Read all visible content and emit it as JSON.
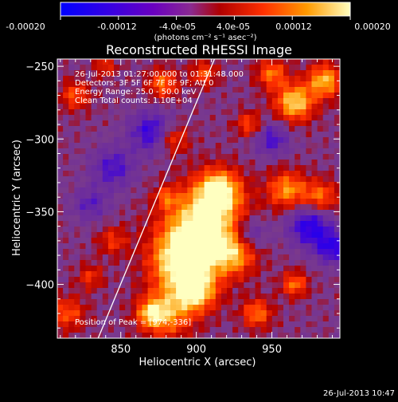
{
  "colorbar": {
    "ticks": [
      "-0.00020",
      "-0.00012",
      "-4.0e-05",
      "4.0e-05",
      "0.00012",
      "0.00020"
    ],
    "units": "(photons cm⁻² s⁻¹ asec⁻²)"
  },
  "header": {
    "title": "Reconstructed RHESSI Image"
  },
  "info": {
    "line1": "26-Jul-2013 01:27:00.000 to 01:31:48.000",
    "line2": "Detectors: 3F 5F 6F 7F 8F 9F; Att 0",
    "line3": "Energy Range: 25.0 - 50.0 keV",
    "line4": "Clean    Total counts: 1.10E+04",
    "peak": "Position of Peak = [974,-336]"
  },
  "footer": {
    "timestamp": "26-Jul-2013 10:47"
  },
  "colors": {
    "background": "#000000",
    "text": "#ffffff",
    "colormap": [
      "#0000ff",
      "#4b00cc",
      "#6a2aa0",
      "#7a3a8c",
      "#b00000",
      "#ff3000",
      "#ff9a00",
      "#ffff80"
    ]
  },
  "chart_data": {
    "type": "heatmap",
    "title": "Reconstructed RHESSI Image",
    "xlabel": "Heliocentric X (arcsec)",
    "ylabel": "Heliocentric Y (arcsec)",
    "xlim": [
      808,
      995
    ],
    "ylim": [
      -437,
      -245
    ],
    "x_ticks": [
      850,
      900,
      950
    ],
    "y_ticks": [
      -250,
      -300,
      -350,
      -400
    ],
    "colorbar_range": [
      -0.0002,
      0.0002
    ],
    "peak_position": [
      974,
      -336
    ],
    "limb_line": [
      [
        835,
        -437
      ],
      [
        912,
        -245
      ]
    ],
    "grid": false
  }
}
